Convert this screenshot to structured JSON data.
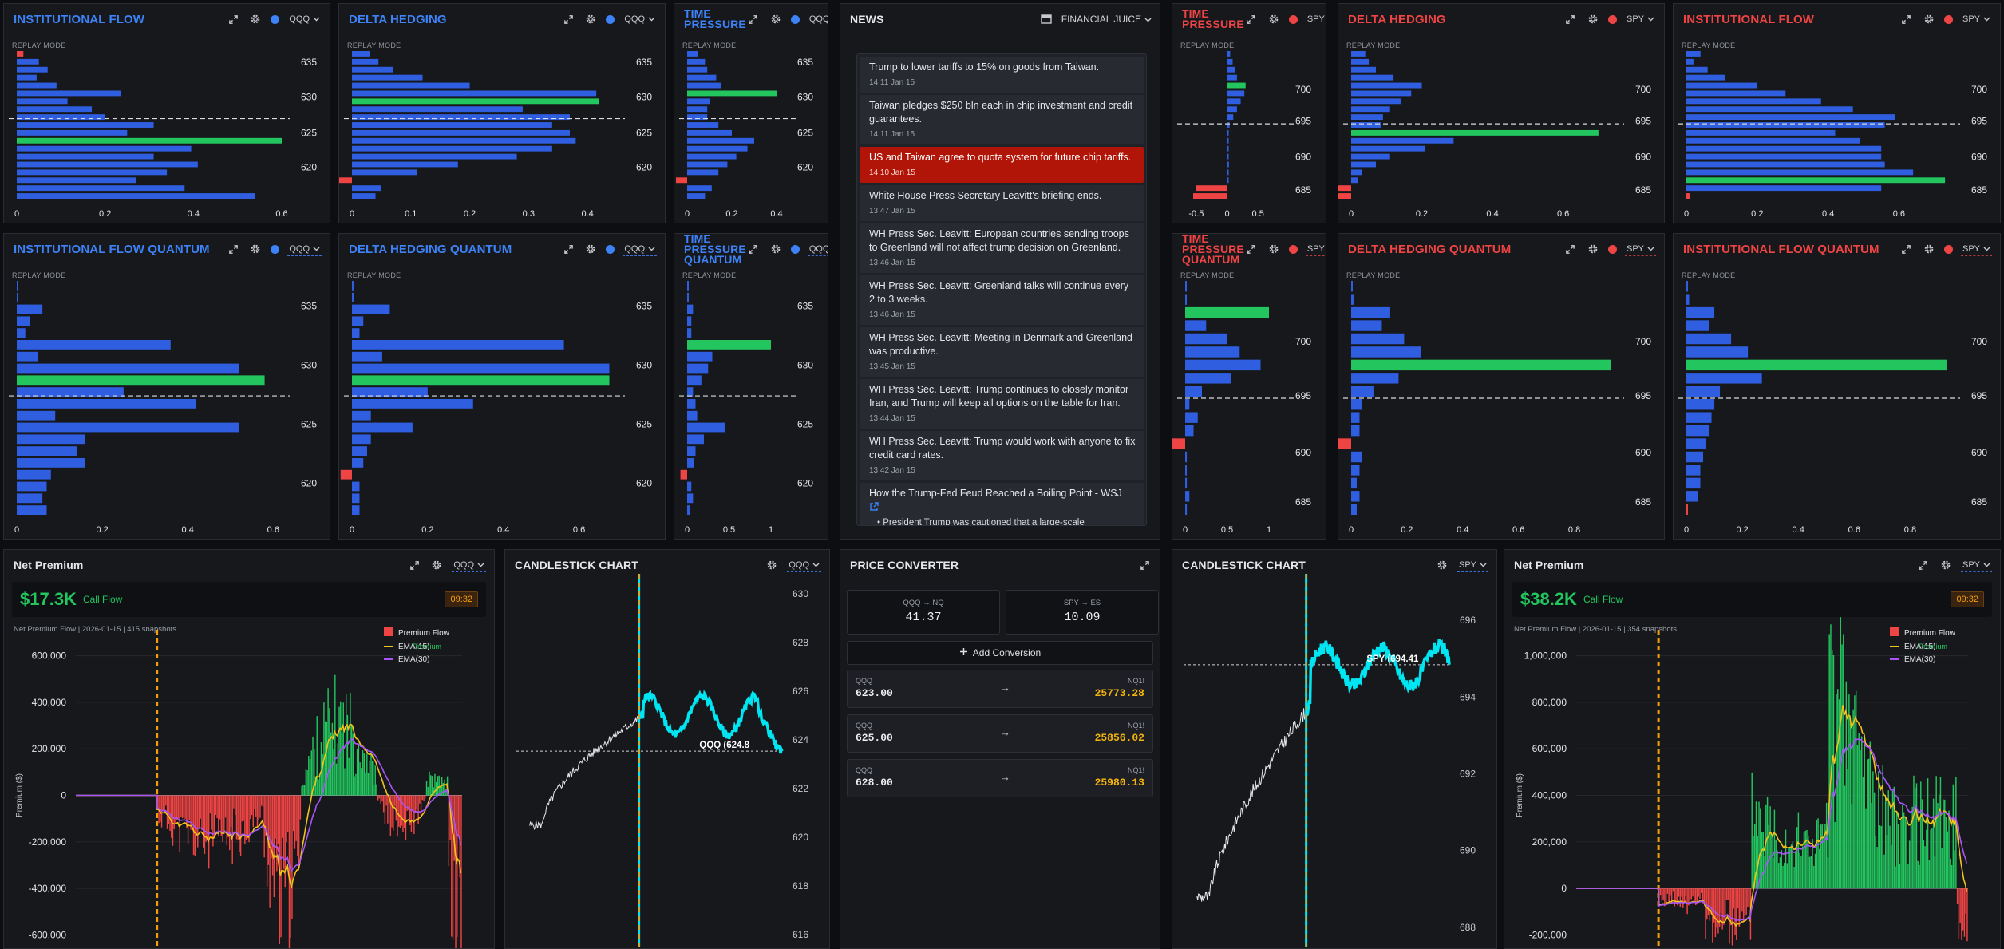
{
  "colors": {
    "blue_bar": "#2f5fe0",
    "green_bar": "#22c55e",
    "red_bar": "#ef4444",
    "title_blue": "#3d82f6",
    "title_red": "#ef4444",
    "accent_orange": "#f59e0b",
    "cyan": "#00e5f2"
  },
  "common": {
    "replay_mode": "REPLAY MODE"
  },
  "flow_panels": [
    {
      "title": "INSTITUTIONAL FLOW",
      "color": "blue",
      "ticker": "QQQ",
      "replay": "REPLAY MODE",
      "strikes": [
        "635",
        "630",
        "625",
        "620"
      ],
      "strike_at": [
        0.08,
        0.31,
        0.55,
        0.78
      ],
      "xticks": [
        "0",
        "0.2",
        "0.4",
        "0.6"
      ],
      "xmax": 0.6,
      "bars": [
        0.015,
        0.05,
        0.07,
        0.045,
        0.09,
        0.235,
        0.115,
        0.17,
        0.2,
        0.31,
        0.25,
        0.6,
        0.395,
        0.31,
        0.41,
        0.34,
        0.27,
        0.38,
        0.54
      ],
      "bar_colors": [
        "r",
        "b",
        "b",
        "b",
        "b",
        "b",
        "b",
        "b",
        "b",
        "b",
        "b",
        "g",
        "b",
        "b",
        "b",
        "b",
        "b",
        "b",
        "b"
      ],
      "dash_at": 0.455
    },
    {
      "title": "DELTA HEDGING",
      "color": "blue",
      "ticker": "QQQ",
      "replay": "REPLAY MODE",
      "strikes": [
        "635",
        "630",
        "625",
        "620"
      ],
      "strike_at": [
        0.08,
        0.31,
        0.55,
        0.78
      ],
      "xticks": [
        "0",
        "0.1",
        "0.2",
        "0.3",
        "0.4"
      ],
      "xmax": 0.45,
      "bars": [
        0.03,
        0.045,
        0.07,
        0.12,
        0.2,
        0.415,
        0.42,
        0.29,
        0.37,
        0.34,
        0.37,
        0.38,
        0.34,
        0.28,
        0.18,
        0.11,
        0.07,
        0.05,
        0.04
      ],
      "bar_colors": [
        "b",
        "b",
        "b",
        "b",
        "b",
        "b",
        "g",
        "b",
        "b",
        "b",
        "b",
        "b",
        "b",
        "b",
        "b",
        "b",
        "r",
        "b",
        "b"
      ],
      "neg": {
        "16": 0.05
      },
      "dash_at": 0.455
    },
    {
      "title": "TIME PRESSURE",
      "color": "blue",
      "ticker": "QQQ",
      "replay": "REPLAY MODE",
      "two_line": true,
      "strikes": [
        "635",
        "630",
        "625",
        "620"
      ],
      "strike_at": [
        0.08,
        0.31,
        0.55,
        0.78
      ],
      "xticks": [
        "0",
        "0.2",
        "0.4"
      ],
      "xmax": 0.45,
      "bars": [
        0.05,
        0.08,
        0.09,
        0.13,
        0.15,
        0.4,
        0.1,
        0.09,
        0.09,
        0.14,
        0.2,
        0.3,
        0.27,
        0.22,
        0.18,
        0.14,
        0.08,
        0.11,
        0.08
      ],
      "bar_colors": [
        "b",
        "b",
        "b",
        "b",
        "b",
        "g",
        "b",
        "b",
        "b",
        "b",
        "b",
        "b",
        "b",
        "b",
        "b",
        "b",
        "r",
        "b",
        "b"
      ],
      "neg": {
        "16": 0.05
      },
      "dash_at": 0.455
    },
    {
      "title": "TIME PRESSURE",
      "color": "red",
      "ticker": "SPY",
      "replay": "REPLAY MODE",
      "two_line": true,
      "strikes": [
        "700",
        "695",
        "690",
        "685"
      ],
      "strike_at": [
        0.26,
        0.47,
        0.71,
        0.93
      ],
      "xticks": [
        "-0.5",
        "0",
        "0.5"
      ],
      "xmax": 0.95,
      "xmin": -0.55,
      "bars": [
        0.05,
        0.09,
        0.13,
        0.16,
        0.3,
        0.28,
        0.22,
        0.16,
        0.1,
        0.04,
        0.02,
        0.02,
        0.01,
        0.02,
        0.03,
        0.01,
        0.02,
        0.01,
        0.02
      ],
      "bar_colors": [
        "b",
        "b",
        "b",
        "b",
        "g",
        "b",
        "b",
        "b",
        "b",
        "b",
        "b",
        "b",
        "b",
        "b",
        "b",
        "b",
        "b",
        "r",
        "r"
      ],
      "neg": {
        "17": 0.5,
        "18": 0.55
      },
      "dash_at": 0.49
    },
    {
      "title": "DELTA HEDGING",
      "color": "red",
      "ticker": "SPY",
      "replay": "REPLAY MODE",
      "strikes": [
        "700",
        "695",
        "690",
        "685"
      ],
      "strike_at": [
        0.26,
        0.47,
        0.71,
        0.93
      ],
      "xticks": [
        "0",
        "0.2",
        "0.4",
        "0.6"
      ],
      "xmax": 0.75,
      "bars": [
        0.04,
        0.05,
        0.07,
        0.12,
        0.2,
        0.17,
        0.14,
        0.11,
        0.09,
        0.085,
        0.7,
        0.29,
        0.21,
        0.11,
        0.07,
        0.03,
        0.02,
        0.02,
        0.02
      ],
      "bar_colors": [
        "b",
        "b",
        "b",
        "b",
        "b",
        "b",
        "b",
        "b",
        "b",
        "b",
        "g",
        "b",
        "b",
        "b",
        "b",
        "b",
        "b",
        "r",
        "r"
      ],
      "neg": {
        "17": 0.12,
        "18": 0.12
      },
      "dash_at": 0.49
    },
    {
      "title": "INSTITUTIONAL FLOW",
      "color": "red",
      "ticker": "SPY",
      "replay": "REPLAY MODE",
      "strikes": [
        "700",
        "695",
        "690",
        "685"
      ],
      "strike_at": [
        0.26,
        0.47,
        0.71,
        0.93
      ],
      "xticks": [
        "0",
        "0.2",
        "0.4",
        "0.6"
      ],
      "xmax": 0.75,
      "bars": [
        0.04,
        0.02,
        0.06,
        0.11,
        0.2,
        0.28,
        0.38,
        0.47,
        0.59,
        0.56,
        0.42,
        0.49,
        0.55,
        0.55,
        0.56,
        0.64,
        0.73,
        0.55,
        0.01
      ],
      "bar_colors": [
        "b",
        "b",
        "b",
        "b",
        "b",
        "b",
        "b",
        "b",
        "b",
        "b",
        "b",
        "b",
        "b",
        "b",
        "b",
        "b",
        "g",
        "b",
        "r"
      ],
      "dash_at": 0.49
    },
    {
      "title": "INSTITUTIONAL FLOW QUANTUM",
      "color": "blue",
      "ticker": "QQQ",
      "replay": "REPLAY MODE",
      "strikes": [
        "635",
        "630",
        "625",
        "620"
      ],
      "strike_at": [
        0.11,
        0.36,
        0.61,
        0.86
      ],
      "xticks": [
        "0",
        "0.2",
        "0.4",
        "0.6"
      ],
      "xmax": 0.62,
      "bars": [
        0.003,
        0.003,
        0.06,
        0.03,
        0.02,
        0.36,
        0.05,
        0.52,
        0.58,
        0.25,
        0.42,
        0.09,
        0.52,
        0.16,
        0.14,
        0.16,
        0.08,
        0.07,
        0.06,
        0.07
      ],
      "bar_colors": [
        "b",
        "b",
        "b",
        "b",
        "b",
        "b",
        "b",
        "b",
        "g",
        "b",
        "b",
        "b",
        "b",
        "b",
        "b",
        "b",
        "b",
        "b",
        "b",
        "b"
      ],
      "dash_at": 0.49
    },
    {
      "title": "DELTA HEDGING QUANTUM",
      "color": "blue",
      "ticker": "QQQ",
      "replay": "REPLAY MODE",
      "strikes": [
        "635",
        "630",
        "625",
        "620"
      ],
      "strike_at": [
        0.11,
        0.36,
        0.61,
        0.86
      ],
      "xticks": [
        "0",
        "0.2",
        "0.4",
        "0.6"
      ],
      "xmax": 0.7,
      "bars": [
        0.003,
        0.003,
        0.1,
        0.03,
        0.02,
        0.56,
        0.08,
        0.68,
        0.68,
        0.2,
        0.32,
        0.05,
        0.16,
        0.05,
        0.04,
        0.03,
        0.02,
        0.02,
        0.02,
        0.02
      ],
      "bar_colors": [
        "b",
        "b",
        "b",
        "b",
        "b",
        "b",
        "b",
        "b",
        "g",
        "b",
        "b",
        "b",
        "b",
        "b",
        "b",
        "b",
        "r",
        "b",
        "b",
        "b"
      ],
      "neg": {
        "16": 0.03
      },
      "dash_at": 0.49
    },
    {
      "title": "TIME PRESSURE QUANTUM",
      "color": "blue",
      "ticker": "QQQ",
      "replay": "REPLAY MODE",
      "two_line": true,
      "strikes": [
        "635",
        "630",
        "625",
        "620"
      ],
      "strike_at": [
        0.11,
        0.36,
        0.61,
        0.86
      ],
      "xticks": [
        "0",
        "0.5",
        "1"
      ],
      "xmax": 1.2,
      "bars": [
        0.01,
        0.01,
        0.07,
        0.05,
        0.05,
        1.0,
        0.3,
        0.25,
        0.17,
        0.07,
        0.1,
        0.12,
        0.45,
        0.2,
        0.1,
        0.08,
        0.06,
        0.05,
        0.07,
        0.03
      ],
      "bar_colors": [
        "b",
        "b",
        "b",
        "b",
        "b",
        "g",
        "b",
        "b",
        "b",
        "b",
        "b",
        "b",
        "b",
        "b",
        "b",
        "b",
        "r",
        "b",
        "b",
        "b"
      ],
      "neg": {
        "16": 0.08
      },
      "dash_at": 0.49
    },
    {
      "title": "TIME PRESSURE QUANTUM",
      "color": "red",
      "ticker": "SPY",
      "replay": "REPLAY MODE",
      "two_line": true,
      "strikes": [
        "700",
        "695",
        "690",
        "685"
      ],
      "strike_at": [
        0.26,
        0.49,
        0.73,
        0.94
      ],
      "xticks": [
        "0",
        "0.5",
        "1"
      ],
      "xmax": 1.2,
      "bars": [
        0.005,
        0.01,
        1.0,
        0.25,
        0.5,
        0.65,
        0.9,
        0.55,
        0.2,
        0.05,
        0.15,
        0.1,
        0.3,
        0.02,
        0.01,
        0.02,
        0.05,
        0.02
      ],
      "bar_colors": [
        "b",
        "b",
        "g",
        "b",
        "b",
        "b",
        "b",
        "b",
        "b",
        "b",
        "b",
        "b",
        "r",
        "b",
        "b",
        "b",
        "b",
        "b"
      ],
      "neg": {
        "12": 0.3
      },
      "dash_at": 0.5
    },
    {
      "title": "DELTA HEDGING QUANTUM",
      "color": "red",
      "ticker": "SPY",
      "replay": "REPLAY MODE",
      "strikes": [
        "700",
        "695",
        "690",
        "685"
      ],
      "strike_at": [
        0.26,
        0.49,
        0.73,
        0.94
      ],
      "xticks": [
        "0",
        "0.2",
        "0.4",
        "0.6",
        "0.8"
      ],
      "xmax": 0.95,
      "bars": [
        0.005,
        0.01,
        0.14,
        0.11,
        0.19,
        0.25,
        0.93,
        0.17,
        0.08,
        0.04,
        0.03,
        0.03,
        0.06,
        0.04,
        0.03,
        0.02,
        0.03,
        0.02
      ],
      "bar_colors": [
        "b",
        "b",
        "b",
        "b",
        "b",
        "b",
        "g",
        "b",
        "b",
        "b",
        "b",
        "b",
        "r",
        "b",
        "b",
        "b",
        "b",
        "b"
      ],
      "neg": {
        "12": 0.05
      },
      "dash_at": 0.5
    },
    {
      "title": "INSTITUTIONAL FLOW QUANTUM",
      "color": "red",
      "ticker": "SPY",
      "replay": "REPLAY MODE",
      "strikes": [
        "700",
        "695",
        "690",
        "685"
      ],
      "strike_at": [
        0.26,
        0.49,
        0.73,
        0.94
      ],
      "xticks": [
        "0",
        "0.2",
        "0.4",
        "0.6",
        "0.8"
      ],
      "xmax": 0.95,
      "bars": [
        0.005,
        0.01,
        0.1,
        0.08,
        0.16,
        0.22,
        0.93,
        0.27,
        0.12,
        0.1,
        0.09,
        0.08,
        0.07,
        0.06,
        0.05,
        0.05,
        0.04,
        0.005
      ],
      "bar_colors": [
        "b",
        "b",
        "b",
        "b",
        "b",
        "b",
        "g",
        "b",
        "b",
        "b",
        "b",
        "b",
        "b",
        "b",
        "b",
        "b",
        "b",
        "r"
      ],
      "dash_at": 0.5
    }
  ],
  "news": {
    "title": "NEWS",
    "source": "FINANCIAL JUICE",
    "items": [
      {
        "text": "Trump to lower tariffs to 15% on goods from Taiwan.",
        "time": "14:11 Jan 15"
      },
      {
        "text": "Taiwan pledges $250 bln each in chip investment and credit guarantees.",
        "time": "14:11 Jan 15"
      },
      {
        "text": "US and Taiwan agree to quota system for future chip tariffs.",
        "time": "14:10 Jan 15",
        "highlight": true
      },
      {
        "text": "White House Press Secretary Leavitt's briefing ends.",
        "time": "13:47 Jan 15"
      },
      {
        "text": "WH Press Sec. Leavitt: European countries sending troops to Greenland will not affect trump decision on Greenland.",
        "time": "13:46 Jan 15"
      },
      {
        "text": "WH Press Sec. Leavitt: Greenland talks will continue every 2 to 3 weeks.",
        "time": "13:46 Jan 15"
      },
      {
        "text": "WH Press Sec. Leavitt: Meeting in Denmark and Greenland was productive.",
        "time": "13:45 Jan 15"
      },
      {
        "text": "WH Press Sec. Leavitt: Trump continues to closely monitor Iran, and Trump will keep all options on the table for Iran.",
        "time": "13:44 Jan 15"
      },
      {
        "text": "WH Press Sec. Leavitt: Trump would work with anyone to fix credit card rates.",
        "time": "13:42 Jan 15"
      },
      {
        "text": "How the Trump-Fed Feud Reached a Boiling Point - WSJ",
        "time": "",
        "bullet": "President Trump was cautioned that a large-scale"
      }
    ]
  },
  "net_premium_qqq": {
    "title": "Net Premium",
    "ticker": "QQQ",
    "value": "$17.3K",
    "label": "Call Flow",
    "time": "09:32",
    "meta": "Net Premium Flow | 2026-01-15 | 415 snapshots",
    "ylabel": "Premium ($)",
    "legend": [
      "Premium Flow",
      "EMA(15)",
      "EMA(30)",
      "Premium"
    ],
    "yticks": [
      "600,000",
      "400,000",
      "200,000",
      "0",
      "-200,000",
      "-400,000",
      "-600,000"
    ],
    "ymin": -650000,
    "ymax": 650000
  },
  "net_premium_spy": {
    "title": "Net Premium",
    "ticker": "SPY",
    "value": "$38.2K",
    "label": "Call Flow",
    "time": "09:32",
    "meta": "Net Premium Flow | 2026-01-15 | 354 snapshots",
    "ylabel": "Premium ($)",
    "legend": [
      "Premium Flow",
      "EMA(15)",
      "EMA(30)",
      "Premium"
    ],
    "yticks": [
      "1,000,000",
      "800,000",
      "600,000",
      "400,000",
      "200,000",
      "0",
      "-200,000"
    ],
    "ymin": -250000,
    "ymax": 1050000
  },
  "candle_qqq": {
    "title": "CANDLESTICK CHART",
    "ticker": "QQQ",
    "yticks": [
      "630",
      "628",
      "626",
      "624",
      "622",
      "620",
      "618",
      "616"
    ],
    "price_label": "QQQ (624.8",
    "ymin": 615.5,
    "ymax": 630.5
  },
  "candle_spy": {
    "title": "CANDLESTICK CHART",
    "ticker": "SPY",
    "yticks": [
      "696",
      "694",
      "692",
      "690",
      "688"
    ],
    "price_label": "SPY (694.41",
    "ymin": 687.5,
    "ymax": 697
  },
  "converter": {
    "title": "PRICE CONVERTER",
    "cards": [
      {
        "pair": "QQQ → NQ",
        "value": "41.37"
      },
      {
        "pair": "SPY → ES",
        "value": "10.09"
      }
    ],
    "add_label": "Add Conversion",
    "rows": [
      {
        "from": "QQQ",
        "from_val": "623.00",
        "to": "NQ1!",
        "to_val": "25773.28"
      },
      {
        "from": "QQQ",
        "from_val": "625.00",
        "to": "NQ1!",
        "to_val": "25856.02"
      },
      {
        "from": "QQQ",
        "from_val": "628.00",
        "to": "NQ1!",
        "to_val": "25980.13"
      }
    ]
  }
}
